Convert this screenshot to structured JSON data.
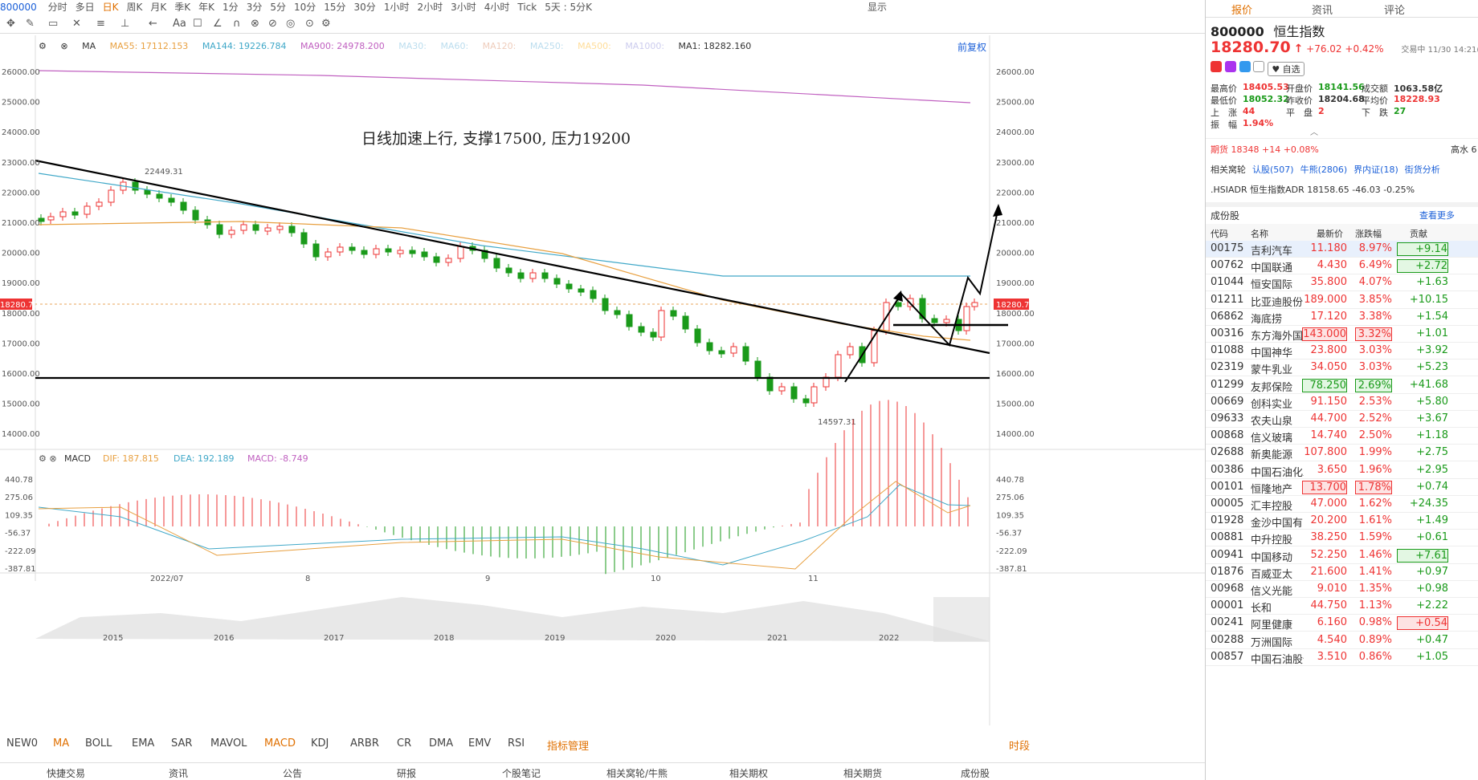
{
  "top": {
    "code": "800000",
    "items": [
      "分时",
      "多日",
      "日K",
      "周K",
      "月K",
      "季K",
      "年K",
      "1分",
      "3分",
      "5分",
      "10分",
      "15分",
      "30分",
      "1小时",
      "2小时",
      "3小时",
      "4小时",
      "Tick",
      "5天 : 5分K"
    ],
    "active": "日K",
    "display": "显示"
  },
  "legend": {
    "ma_label": "MA",
    "ma55": "MA55: 17112.153",
    "ma144": "MA144: 19226.784",
    "ma900": "MA900: 24978.200",
    "ma30": "MA30:",
    "ma60": "MA60:",
    "ma120": "MA120:",
    "ma250": "MA250:",
    "ma500": "MA500:",
    "ma1000": "MA1000:",
    "ma1": "MA1: 18282.160",
    "fuquan": "前复权"
  },
  "annotation": "日线加速上行, 支撑17500, 压力19200",
  "price_labels": {
    "high": "22449.31",
    "low": "14597.31",
    "current": "18280.70"
  },
  "yaxis": [
    "26000.00",
    "25000.00",
    "24000.00",
    "23000.00",
    "22000.00",
    "21000.00",
    "20000.00",
    "19000.00",
    "18000.00",
    "17000.00",
    "16000.00",
    "15000.00",
    "14000.00"
  ],
  "macd_legend": {
    "label": "MACD",
    "dif": "DIF: 187.815",
    "dea": "DEA: 192.189",
    "macd": "MACD: -8.749"
  },
  "macd_yaxis": [
    "440.78",
    "275.06",
    "109.35",
    "-56.37",
    "-222.09",
    "-387.81"
  ],
  "months": [
    "2022/07",
    "8",
    "9",
    "10",
    "11"
  ],
  "years": [
    "2015",
    "2016",
    "2017",
    "2018",
    "2019",
    "2020",
    "2021",
    "2022"
  ],
  "indicators": [
    "NEW0",
    "MA",
    "BOLL",
    "EMA",
    "SAR",
    "MAVOL",
    "MACD",
    "KDJ",
    "ARBR",
    "CR",
    "DMA",
    "EMV",
    "RSI",
    "指标管理"
  ],
  "active_indicator": "MACD",
  "shiduan": "时段",
  "footer": [
    "快捷交易",
    "资讯",
    "公告",
    "研报",
    "个股笔记",
    "相关窝轮/牛熊",
    "相关期权",
    "相关期货",
    "成份股"
  ],
  "panel": {
    "tabs": [
      "报价",
      "资讯",
      "评论"
    ],
    "code": "800000",
    "name": "恒生指数",
    "price": "18280.70",
    "change": "+76.02",
    "pct": "+0.42%",
    "time": "交易中 11/30 14:21(北京)",
    "zixuan": "自选",
    "stats": [
      [
        "最高价",
        "18405.53",
        "开盘价",
        "18141.56",
        "成交额",
        "1063.58亿"
      ],
      [
        "最低价",
        "18052.32",
        "昨收价",
        "18204.68",
        "平均价",
        "18228.93"
      ],
      [
        "上　涨",
        "44",
        "平　盘",
        "2",
        "下　跌",
        "27"
      ],
      [
        "振　幅",
        "1.94%",
        "",
        "",
        "",
        ""
      ]
    ],
    "futures": "期货 18348 +14 +0.08%",
    "futures_r": "高水 6",
    "links": [
      "相关窝轮",
      "认股(507)",
      "牛熊(2806)",
      "界内证(18)",
      "街货分析"
    ],
    "adr": ".HSIADR 恒生指数ADR  18158.65  -46.03  -0.25%",
    "constituents_title": "成份股",
    "more": "查看更多",
    "headers": [
      "代码",
      "名称",
      "最新价",
      "涨跌幅",
      "贡献"
    ],
    "rows": [
      [
        "00175",
        "吉利汽车",
        "11.180",
        "8.97%",
        "+9.14"
      ],
      [
        "00762",
        "中国联通",
        "4.430",
        "6.49%",
        "+2.72"
      ],
      [
        "01044",
        "恒安国际",
        "35.800",
        "4.07%",
        "+1.63"
      ],
      [
        "01211",
        "比亚迪股份",
        "189.000",
        "3.85%",
        "+10.15"
      ],
      [
        "06862",
        "海底捞",
        "17.120",
        "3.38%",
        "+1.54"
      ],
      [
        "00316",
        "东方海外国际",
        "143.000",
        "3.32%",
        "+1.01"
      ],
      [
        "01088",
        "中国神华",
        "23.800",
        "3.03%",
        "+3.92"
      ],
      [
        "02319",
        "蒙牛乳业",
        "34.050",
        "3.03%",
        "+5.23"
      ],
      [
        "01299",
        "友邦保险",
        "78.250",
        "2.69%",
        "+41.68"
      ],
      [
        "00669",
        "创科实业",
        "91.150",
        "2.53%",
        "+5.80"
      ],
      [
        "09633",
        "农夫山泉",
        "44.700",
        "2.52%",
        "+3.67"
      ],
      [
        "00868",
        "信义玻璃",
        "14.740",
        "2.50%",
        "+1.18"
      ],
      [
        "02688",
        "新奥能源",
        "107.800",
        "1.99%",
        "+2.75"
      ],
      [
        "00386",
        "中国石油化工",
        "3.650",
        "1.96%",
        "+2.95"
      ],
      [
        "00101",
        "恒隆地产",
        "13.700",
        "1.78%",
        "+0.74"
      ],
      [
        "00005",
        "汇丰控股",
        "47.000",
        "1.62%",
        "+24.35"
      ],
      [
        "01928",
        "金沙中国有限",
        "20.200",
        "1.61%",
        "+1.49"
      ],
      [
        "00881",
        "中升控股",
        "38.250",
        "1.59%",
        "+0.61"
      ],
      [
        "00941",
        "中国移动",
        "52.250",
        "1.46%",
        "+7.61"
      ],
      [
        "01876",
        "百威亚太",
        "21.600",
        "1.41%",
        "+0.97"
      ],
      [
        "00968",
        "信义光能",
        "9.010",
        "1.35%",
        "+0.98"
      ],
      [
        "00001",
        "长和",
        "44.750",
        "1.13%",
        "+2.22"
      ],
      [
        "00241",
        "阿里健康",
        "6.160",
        "0.98%",
        "+0.54"
      ],
      [
        "00288",
        "万洲国际",
        "4.540",
        "0.89%",
        "+0.47"
      ],
      [
        "00857",
        "中国石油股份",
        "3.510",
        "0.86%",
        "+1.05"
      ]
    ]
  },
  "colors": {
    "up": "#e33",
    "down": "#1a9a1a",
    "ma55": "#e8a040",
    "ma144": "#40a8c8",
    "ma900": "#c060c0"
  }
}
